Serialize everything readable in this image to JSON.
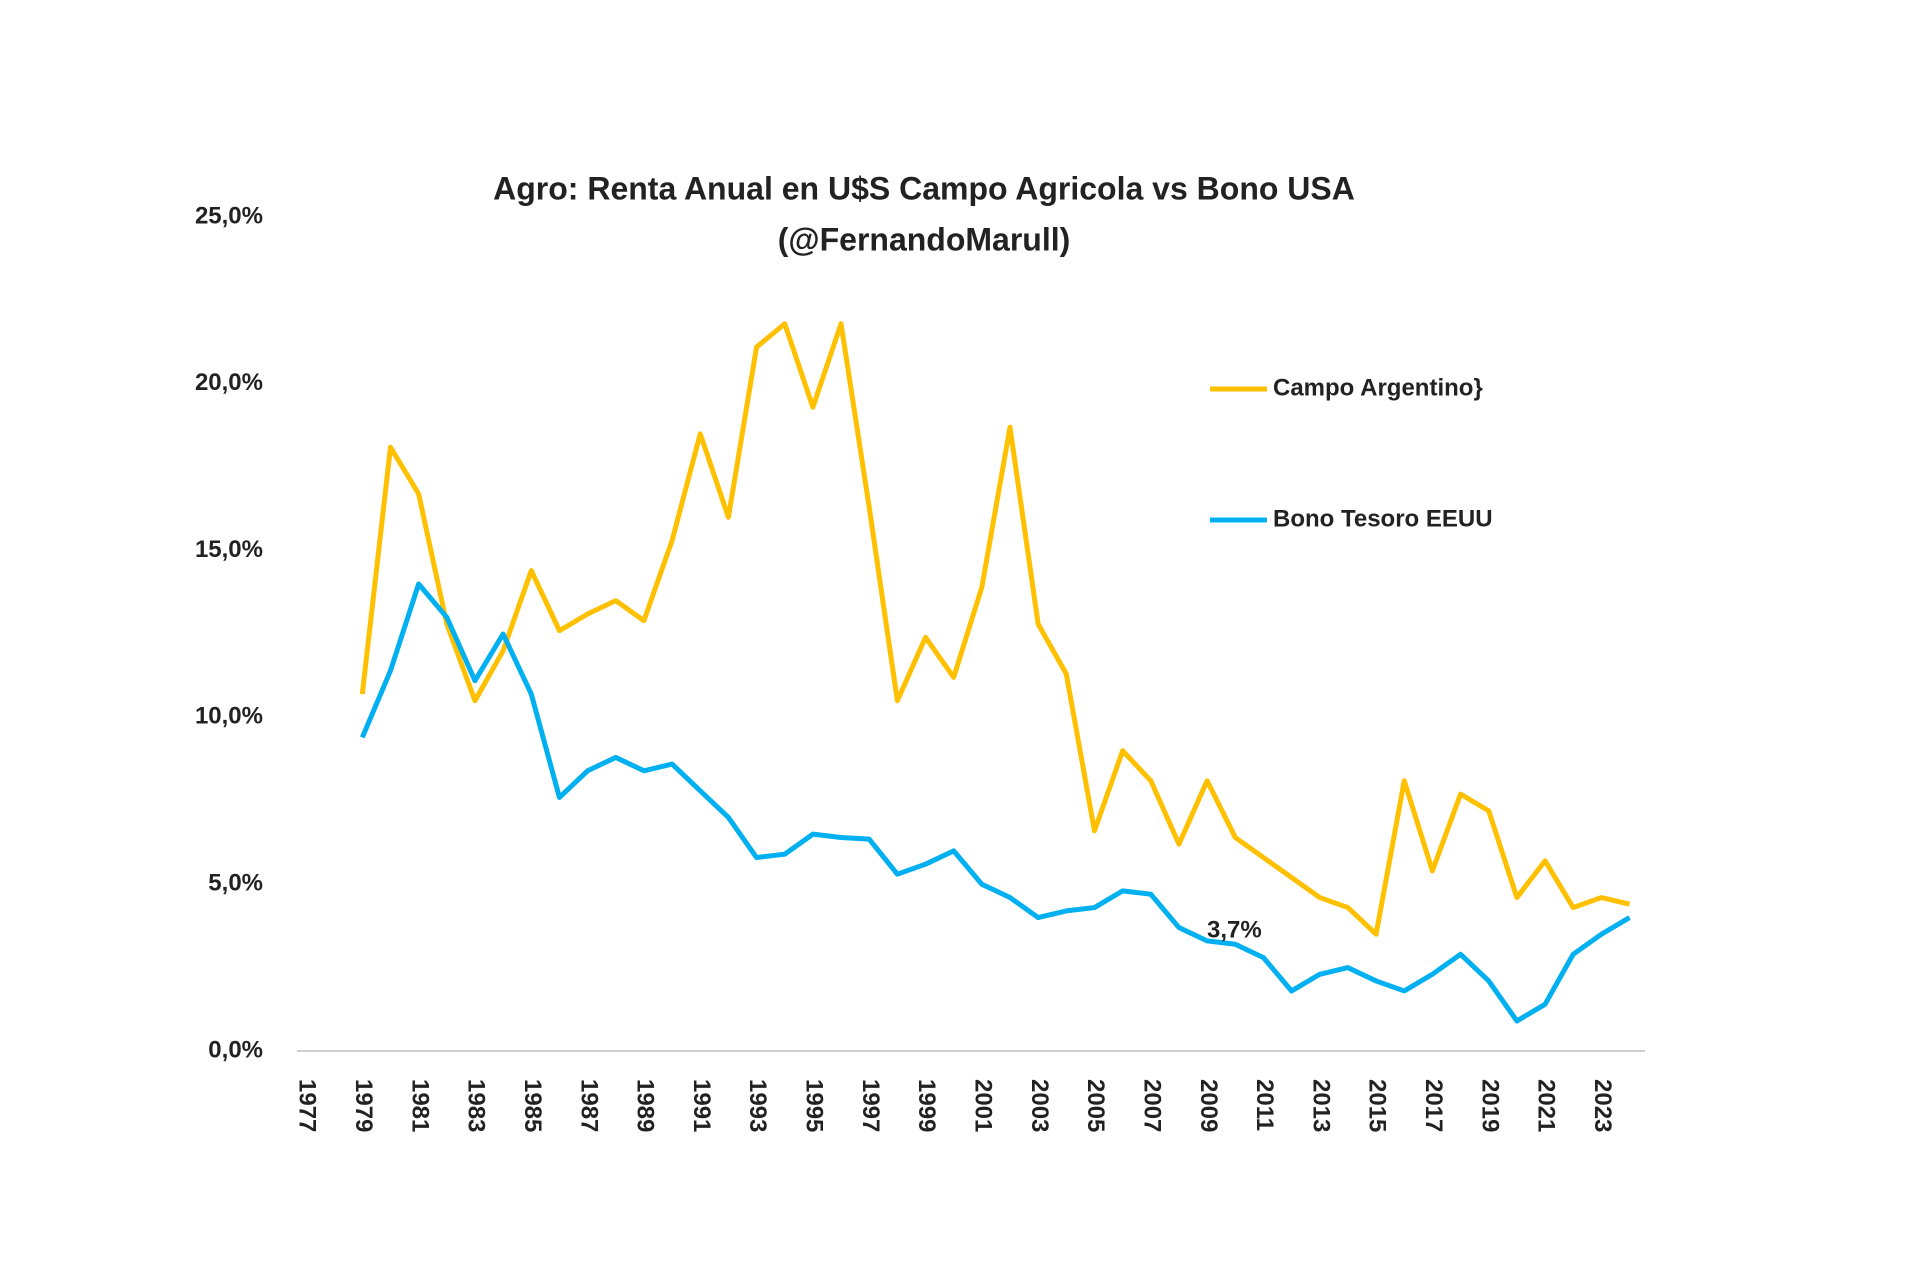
{
  "chart_data": {
    "type": "line",
    "title": "Agro: Renta Anual en U$S Campo Agricola  vs Bono USA",
    "subtitle": "(@FernandoMarull)",
    "categories": [
      "1977",
      null,
      "1979",
      null,
      "1981",
      null,
      "1983",
      null,
      "1985",
      null,
      "1987",
      null,
      "1989",
      null,
      "1991",
      null,
      "1993",
      null,
      "1995",
      null,
      "1997",
      null,
      "1999",
      null,
      "2001",
      null,
      "2003",
      null,
      "2005",
      null,
      "2007",
      null,
      "2009",
      null,
      "2011",
      null,
      "2013",
      null,
      "2015",
      null,
      "2017",
      null,
      "2019",
      null,
      "2021",
      null,
      "2023",
      null
    ],
    "series": [
      {
        "name": "Campo Argentino}",
        "color": "#FFC000",
        "values": [
          null,
          null,
          10.7,
          18.1,
          16.7,
          12.8,
          10.5,
          12.0,
          14.4,
          12.6,
          13.1,
          13.5,
          12.9,
          15.3,
          18.5,
          16.0,
          21.1,
          21.8,
          19.3,
          21.8,
          16.3,
          10.5,
          12.4,
          11.2,
          13.9,
          18.7,
          12.8,
          11.3,
          6.6,
          9.0,
          8.1,
          6.2,
          8.1,
          6.4,
          5.8,
          5.2,
          4.6,
          4.3,
          3.5,
          8.1,
          5.4,
          7.7,
          7.2,
          4.6,
          5.7,
          4.3,
          4.6,
          4.4
        ]
      },
      {
        "name": "Bono Tesoro EEUU",
        "color": "#00B0F0",
        "values": [
          null,
          null,
          9.4,
          11.4,
          14.0,
          13.0,
          11.1,
          12.5,
          10.7,
          7.6,
          8.4,
          8.8,
          8.4,
          8.6,
          7.8,
          7.0,
          5.8,
          5.9,
          6.5,
          6.4,
          6.35,
          5.3,
          5.6,
          6.0,
          5.0,
          4.6,
          4.0,
          4.2,
          4.3,
          4.8,
          4.7,
          3.7,
          3.3,
          3.2,
          2.8,
          1.8,
          2.3,
          2.5,
          2.1,
          1.8,
          2.3,
          2.9,
          2.1,
          0.9,
          1.4,
          2.9,
          3.5,
          4.0
        ]
      }
    ],
    "annotation": "3,7%",
    "ylim": [
      0,
      25
    ],
    "yticks": [
      {
        "value": 0,
        "label": "0,0%"
      },
      {
        "value": 5,
        "label": "5,0%"
      },
      {
        "value": 10,
        "label": "10,0%"
      },
      {
        "value": 15,
        "label": "15,0%"
      },
      {
        "value": 20,
        "label": "20,0%"
      },
      {
        "value": 25,
        "label": "25,0%"
      }
    ],
    "grid": false,
    "legend": "right"
  }
}
